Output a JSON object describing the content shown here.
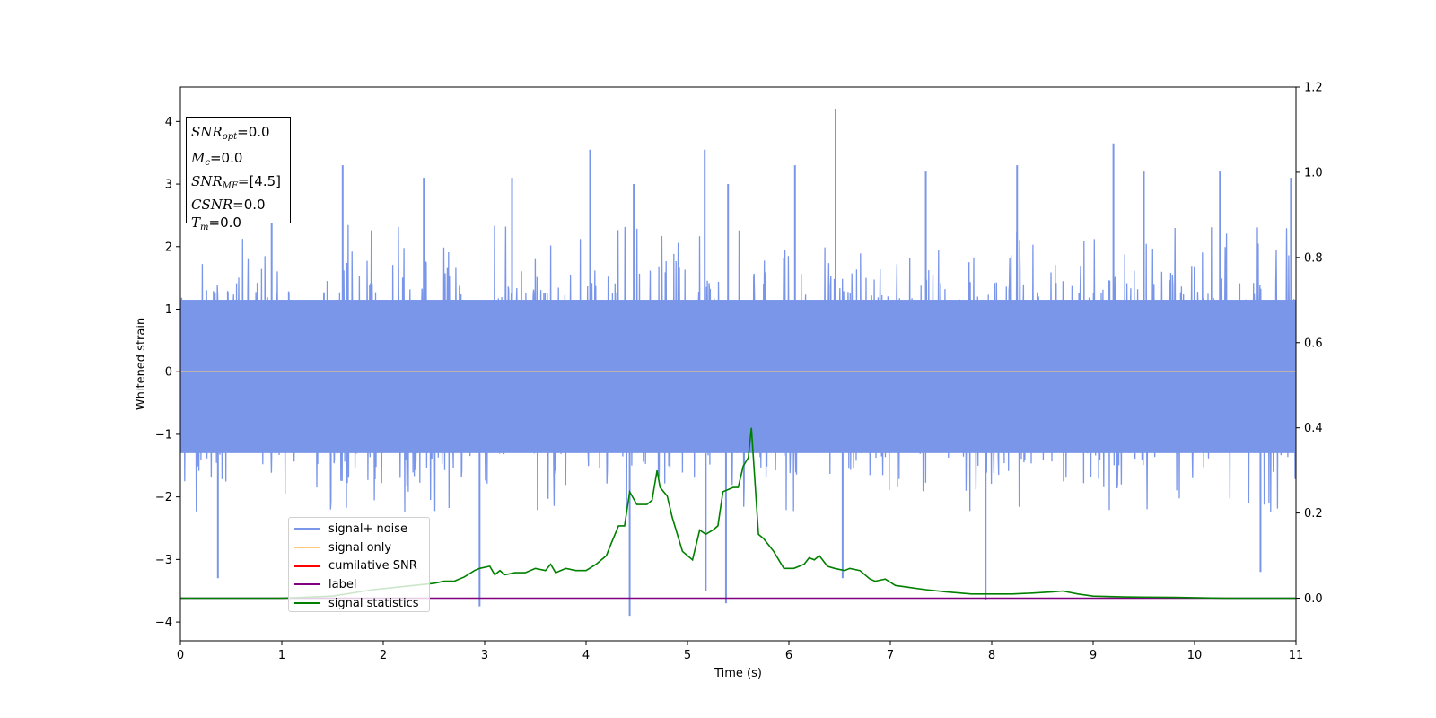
{
  "chart_data": {
    "type": "line",
    "xlabel": "Time (s)",
    "ylabel": "Whitened strain",
    "xlim": [
      0,
      11
    ],
    "ylim": [
      -4.3,
      4.55
    ],
    "ylim_right": [
      -0.1,
      1.2
    ],
    "x_ticks": [
      "0",
      "1",
      "2",
      "3",
      "4",
      "5",
      "6",
      "7",
      "8",
      "9",
      "10",
      "11"
    ],
    "y_ticks": [
      "−4",
      "−3",
      "−2",
      "−1",
      "0",
      "1",
      "2",
      "3",
      "4"
    ],
    "y_ticks_right": [
      "0.0",
      "0.2",
      "0.4",
      "0.6",
      "0.8",
      "1.0",
      "1.2"
    ],
    "grid": false,
    "legend_position": "lower-left",
    "series": [
      {
        "name": "signal+ noise",
        "color": "#4169e1",
        "axis": "left",
        "description_values": "noise band approx -2.2 to 2.3 with spikes to 4.2 and -3.9",
        "spikes": [
          [
            0.37,
            -3.3
          ],
          [
            0.9,
            2.9
          ],
          [
            1.6,
            3.3
          ],
          [
            2.4,
            3.1
          ],
          [
            2.95,
            -3.75
          ],
          [
            3.27,
            3.1
          ],
          [
            4.04,
            3.55
          ],
          [
            4.43,
            -3.9
          ],
          [
            4.47,
            3.0
          ],
          [
            5.17,
            3.55
          ],
          [
            5.18,
            -3.5
          ],
          [
            5.38,
            -3.7
          ],
          [
            5.4,
            3.0
          ],
          [
            6.06,
            3.3
          ],
          [
            6.46,
            4.2
          ],
          [
            6.53,
            -3.3
          ],
          [
            7.35,
            3.2
          ],
          [
            7.94,
            -3.65
          ],
          [
            8.25,
            3.3
          ],
          [
            9.2,
            3.65
          ],
          [
            9.5,
            3.2
          ],
          [
            10.25,
            3.2
          ],
          [
            10.65,
            -3.2
          ],
          [
            10.95,
            3.1
          ]
        ]
      },
      {
        "name": "signal only",
        "color": "#ffa500",
        "axis": "left",
        "x": [
          0,
          11
        ],
        "y": [
          0,
          0
        ]
      },
      {
        "name": "cumilative SNR",
        "color": "#ff0000",
        "axis": "left",
        "x": [],
        "y": []
      },
      {
        "name": "label",
        "color": "#800080",
        "axis": "right",
        "x": [
          0,
          11
        ],
        "y": [
          0,
          0
        ]
      },
      {
        "name": "signal statistics",
        "color": "#008000",
        "axis": "right",
        "x": [
          0,
          0.5,
          1.0,
          1.5,
          1.9,
          2.1,
          2.3,
          2.5,
          2.6,
          2.7,
          2.8,
          2.9,
          2.95,
          3.05,
          3.1,
          3.15,
          3.2,
          3.3,
          3.4,
          3.5,
          3.6,
          3.65,
          3.7,
          3.8,
          3.9,
          4.0,
          4.1,
          4.2,
          4.25,
          4.32,
          4.38,
          4.43,
          4.5,
          4.6,
          4.65,
          4.7,
          4.73,
          4.8,
          4.85,
          4.95,
          5.05,
          5.12,
          5.18,
          5.25,
          5.3,
          5.35,
          5.45,
          5.5,
          5.55,
          5.6,
          5.63,
          5.7,
          5.75,
          5.85,
          5.95,
          6.05,
          6.15,
          6.2,
          6.25,
          6.3,
          6.38,
          6.45,
          6.55,
          6.6,
          6.7,
          6.8,
          6.85,
          6.95,
          7.05,
          7.2,
          7.35,
          7.55,
          7.8,
          8.0,
          8.2,
          8.4,
          8.6,
          8.7,
          8.85,
          9.0,
          9.3,
          9.8,
          10.3,
          11.0
        ],
        "y": [
          0.0,
          0.0,
          0.0,
          0.005,
          0.02,
          0.025,
          0.03,
          0.035,
          0.04,
          0.04,
          0.05,
          0.065,
          0.07,
          0.075,
          0.055,
          0.065,
          0.055,
          0.06,
          0.06,
          0.07,
          0.065,
          0.08,
          0.06,
          0.07,
          0.065,
          0.065,
          0.08,
          0.1,
          0.13,
          0.17,
          0.17,
          0.25,
          0.22,
          0.22,
          0.23,
          0.3,
          0.26,
          0.24,
          0.19,
          0.11,
          0.09,
          0.16,
          0.15,
          0.16,
          0.17,
          0.25,
          0.26,
          0.26,
          0.31,
          0.33,
          0.4,
          0.15,
          0.14,
          0.11,
          0.07,
          0.07,
          0.08,
          0.095,
          0.09,
          0.1,
          0.075,
          0.07,
          0.065,
          0.07,
          0.065,
          0.045,
          0.04,
          0.045,
          0.03,
          0.025,
          0.02,
          0.015,
          0.01,
          0.01,
          0.01,
          0.012,
          0.015,
          0.017,
          0.01,
          0.005,
          0.003,
          0.002,
          0.0,
          0.0
        ]
      }
    ]
  },
  "info_box": {
    "snr_opt_value": "=0.0",
    "mc_value": "=0.0",
    "snr_mf_value": "=[4.5]",
    "csnr_value": "=0.0",
    "tm_value": "=0.0"
  },
  "legend": {
    "items": [
      {
        "label": "signal+ noise",
        "color": "#7a96e8"
      },
      {
        "label": "signal only",
        "color": "#ffc977"
      },
      {
        "label": "cumilative SNR",
        "color": "#ff0000"
      },
      {
        "label": "label",
        "color": "#800080"
      },
      {
        "label": "signal statistics",
        "color": "#008000"
      }
    ]
  }
}
